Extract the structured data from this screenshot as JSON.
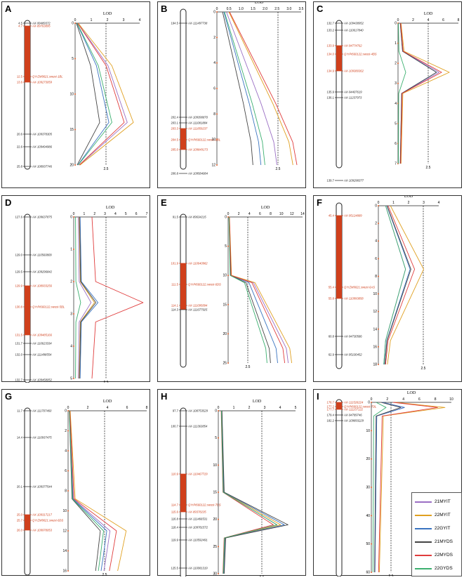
{
  "series": [
    {
      "name": "21MYIT",
      "color": "#9b6fc4"
    },
    {
      "name": "22MYIT",
      "color": "#e0a020"
    },
    {
      "name": "22GYIT",
      "color": "#3a74c0"
    },
    {
      "name": "21MYDS",
      "color": "#444444"
    },
    {
      "name": "22MYDS",
      "color": "#e03c3c"
    },
    {
      "name": "22GYDS",
      "color": "#3cb070"
    }
  ],
  "lod_label": "LOD",
  "threshold_label": "2.5",
  "panels": [
    {
      "letter": "A",
      "lod_ticks": [
        "0",
        "1",
        "2",
        "3",
        "4"
      ],
      "y_ticks": [
        "0",
        "5",
        "10",
        "15",
        "20"
      ],
      "markers": [
        {
          "pos": "4.5",
          "name": "AX-99489372",
          "hl": false
        },
        {
          "pos": "4.7",
          "name": "AX-89763895",
          "hl": true
        },
        {
          "pos": "12.5",
          "name": "QYrZM9021.swust-1BL",
          "hl": true
        },
        {
          "pos": "13.6",
          "name": "AX-109273059",
          "hl": true
        },
        {
          "pos": "20.6",
          "name": "AX-109378305",
          "hl": false
        },
        {
          "pos": "22.6",
          "name": "AX-109494986",
          "hl": false
        },
        {
          "pos": "25.8",
          "name": "AX-108937746",
          "hl": false
        }
      ]
    },
    {
      "letter": "B",
      "lod_ticks": [
        "0",
        "0.5",
        "1.0",
        "1.5",
        "2.0",
        "2.5",
        "3.0",
        "3.5"
      ],
      "y_ticks": [
        "0",
        "2",
        "4",
        "6",
        "8",
        "10",
        "12"
      ],
      "markers": [
        {
          "pos": "194.5",
          "name": "AX-111497738",
          "hl": false
        },
        {
          "pos": "202.4",
          "name": "AX-109390870",
          "hl": false
        },
        {
          "pos": "203.1",
          "name": "AX-111081884",
          "hl": false
        },
        {
          "pos": "203.3",
          "name": "AX-111859237",
          "hl": true
        },
        {
          "pos": "204.5",
          "name": "QYrPI660122.swust-2BL",
          "hl": true
        },
        {
          "pos": "205.0",
          "name": "AX-109849173",
          "hl": true
        },
        {
          "pos": "206.8",
          "name": "AX-109584084",
          "hl": false
        }
      ]
    },
    {
      "letter": "C",
      "lod_ticks": [
        "0",
        "2",
        "4",
        "6",
        "8"
      ],
      "y_ticks": [
        "0",
        "1",
        "2",
        "3",
        "4",
        "5",
        "6",
        "7"
      ],
      "markers": [
        {
          "pos": "132.7",
          "name": "AX-109438952",
          "hl": false
        },
        {
          "pos": "133.2",
          "name": "AX-110617840",
          "hl": false
        },
        {
          "pos": "133.9",
          "name": "AX-94774762",
          "hl": true
        },
        {
          "pos": "134.0",
          "name": "QYrPI660122.swust-4BS",
          "hl": true
        },
        {
          "pos": "134.9",
          "name": "AX-109380362",
          "hl": true
        },
        {
          "pos": "135.9",
          "name": "AX-94407619",
          "hl": false
        },
        {
          "pos": "136.1",
          "name": "AX-11237973",
          "hl": false
        },
        {
          "pos": "139.7",
          "name": "AX-109298377",
          "hl": false
        }
      ]
    },
    {
      "letter": "D",
      "lod_ticks": [
        "0",
        "1",
        "2",
        "3",
        "4",
        "5",
        "6",
        "7"
      ],
      "y_ticks": [
        "0",
        "1",
        "2",
        "3",
        "4",
        "5"
      ],
      "markers": [
        {
          "pos": "127.6",
          "name": "AX-109637875",
          "hl": false
        },
        {
          "pos": "129.0",
          "name": "AX-110560809",
          "hl": false
        },
        {
          "pos": "129.5",
          "name": "AX-109296842",
          "hl": false
        },
        {
          "pos": "129.9",
          "name": "AX-108933256",
          "hl": true
        },
        {
          "pos": "130.8",
          "name": "QYrPI660122.swust-5BL",
          "hl": true
        },
        {
          "pos": "131.5",
          "name": "AX-109485166",
          "hl": true
        },
        {
          "pos": "131.7",
          "name": "AX-110623334",
          "hl": false
        },
        {
          "pos": "132.0",
          "name": "AX-111498554",
          "hl": false
        },
        {
          "pos": "132.7",
          "name": "AX-109458052",
          "hl": false
        }
      ]
    },
    {
      "letter": "E",
      "lod_ticks": [
        "0",
        "2",
        "4",
        "6",
        "8",
        "10",
        "12",
        "14"
      ],
      "y_ticks": [
        "0",
        "5",
        "10",
        "15",
        "20",
        "25"
      ],
      "markers": [
        {
          "pos": "91.5",
          "name": "AX-89634215",
          "hl": false
        },
        {
          "pos": "101.9",
          "name": "AX-110640982",
          "hl": true
        },
        {
          "pos": "111.5",
          "name": "QYrPI660122.swust-6DS",
          "hl": true
        },
        {
          "pos": "114.1",
          "name": "AX-111095894",
          "hl": true
        },
        {
          "pos": "114.3",
          "name": "AX-111677925",
          "hl": false
        }
      ]
    },
    {
      "letter": "F",
      "lod_ticks": [
        "0",
        "1",
        "2",
        "3",
        "4"
      ],
      "y_ticks": [
        "0",
        "2",
        "4",
        "6",
        "8",
        "10",
        "12",
        "14",
        "16",
        "18"
      ],
      "markers": [
        {
          "pos": "45.4",
          "name": "AX-95124889",
          "hl": true
        },
        {
          "pos": "55.4",
          "name": "QYrZM9021.swust-6AS",
          "hl": true
        },
        {
          "pos": "55.8",
          "name": "AX-110993858",
          "hl": true
        },
        {
          "pos": "60.8",
          "name": "AX-94730586",
          "hl": false
        },
        {
          "pos": "62.9",
          "name": "AX-95100452",
          "hl": false
        }
      ]
    },
    {
      "letter": "G",
      "lod_ticks": [
        "0",
        "2",
        "4",
        "6",
        "8"
      ],
      "y_ticks": [
        "0",
        "2",
        "4",
        "6",
        "8",
        "10",
        "12",
        "14",
        "16"
      ],
      "markers": [
        {
          "pos": "11.7",
          "name": "AX-111707460",
          "hl": false
        },
        {
          "pos": "14.4",
          "name": "AX-110937475",
          "hl": false
        },
        {
          "pos": "20.1",
          "name": "AX-109377544",
          "hl": false
        },
        {
          "pos": "25.0",
          "name": "AX-109317217",
          "hl": true
        },
        {
          "pos": "25.7",
          "name": "QYrZM9021.swust-6DS",
          "hl": true
        },
        {
          "pos": "26.0",
          "name": "AX-109978053",
          "hl": true
        }
      ]
    },
    {
      "letter": "H",
      "lod_ticks": [
        "0",
        "1",
        "2",
        "3",
        "4",
        "5"
      ],
      "y_ticks": [
        "0",
        "5",
        "10",
        "15",
        "20",
        "25",
        "30"
      ],
      "markers": [
        {
          "pos": "97.7",
          "name": "AX-108753529",
          "hl": false
        },
        {
          "pos": "100.7",
          "name": "AX-111363854",
          "hl": false
        },
        {
          "pos": "110.9",
          "name": "AX-110467729",
          "hl": true
        },
        {
          "pos": "114.7",
          "name": "QYrPI660122.swust-7BS",
          "hl": true
        },
        {
          "pos": "115.6",
          "name": "AX-89378235",
          "hl": true
        },
        {
          "pos": "116.8",
          "name": "AX-111466531",
          "hl": false
        },
        {
          "pos": "118.4",
          "name": "AX-109781572",
          "hl": false
        },
        {
          "pos": "119.9",
          "name": "AX-110592491",
          "hl": false
        },
        {
          "pos": "125.5",
          "name": "AX-110081319",
          "hl": false
        }
      ]
    },
    {
      "letter": "I",
      "lod_ticks": [
        "0",
        "2",
        "4",
        "6",
        "8",
        "10"
      ],
      "y_ticks": [
        "0",
        "10",
        "20",
        "30",
        "40",
        "50",
        "60"
      ],
      "markers": [
        {
          "pos": "176.7",
          "name": "AX-111528224",
          "hl": true
        },
        {
          "pos": "177.2",
          "name": "QYrPI660122.swust-7DL",
          "hl": true
        },
        {
          "pos": "177.7",
          "name": "AX-111157122",
          "hl": true
        },
        {
          "pos": "179.4",
          "name": "AX-94789746",
          "hl": false
        },
        {
          "pos": "182.2",
          "name": "AX-109893229",
          "hl": false
        }
      ]
    }
  ]
}
